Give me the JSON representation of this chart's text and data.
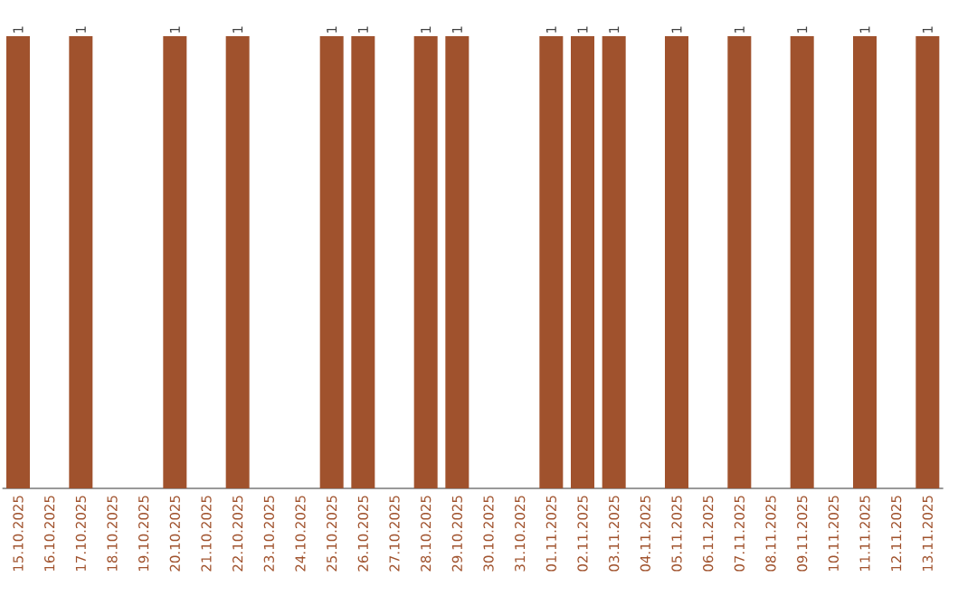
{
  "chart_data": {
    "type": "bar",
    "categories": [
      "15.10.2025",
      "16.10.2025",
      "17.10.2025",
      "18.10.2025",
      "19.10.2025",
      "20.10.2025",
      "21.10.2025",
      "22.10.2025",
      "23.10.2025",
      "24.10.2025",
      "25.10.2025",
      "26.10.2025",
      "27.10.2025",
      "28.10.2025",
      "29.10.2025",
      "30.10.2025",
      "31.10.2025",
      "01.11.2025",
      "02.11.2025",
      "03.11.2025",
      "04.11.2025",
      "05.11.2025",
      "06.11.2025",
      "07.11.2025",
      "08.11.2025",
      "09.11.2025",
      "10.11.2025",
      "11.11.2025",
      "12.11.2025",
      "13.11.2025"
    ],
    "values": [
      1,
      null,
      1,
      null,
      null,
      1,
      null,
      1,
      null,
      null,
      1,
      1,
      null,
      1,
      1,
      null,
      null,
      1,
      1,
      1,
      null,
      1,
      null,
      1,
      null,
      1,
      null,
      1,
      null,
      1
    ],
    "color": "#a0522d",
    "data_labels": true
  }
}
